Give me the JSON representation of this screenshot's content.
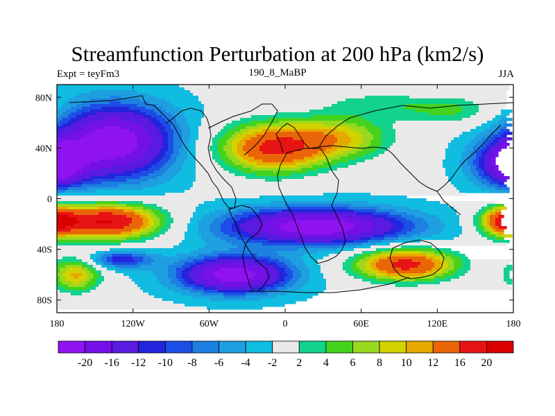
{
  "chart_data": {
    "type": "heatmap",
    "title": "Streamfunction Perturbation at 200 hPa (km2/s)",
    "left_label": "Expt = teyFm3",
    "center_label": "190_8_MaBP",
    "right_label": "JJA",
    "x_range": [
      -180,
      180
    ],
    "y_range": [
      -90,
      90
    ],
    "x_ticks": [
      {
        "value": -180,
        "label": "180"
      },
      {
        "value": -120,
        "label": "120W"
      },
      {
        "value": -60,
        "label": "60W"
      },
      {
        "value": 0,
        "label": "0"
      },
      {
        "value": 60,
        "label": "60E"
      },
      {
        "value": 120,
        "label": "120E"
      },
      {
        "value": 180,
        "label": "180"
      }
    ],
    "y_ticks": [
      {
        "value": 80,
        "label": "80N"
      },
      {
        "value": 40,
        "label": "40N"
      },
      {
        "value": 0,
        "label": "0"
      },
      {
        "value": -40,
        "label": "40S"
      },
      {
        "value": -80,
        "label": "80S"
      }
    ],
    "colorbar": {
      "levels": [
        "-20",
        "-16",
        "-12",
        "-10",
        "-8",
        "-6",
        "-4",
        "-2",
        "2",
        "4",
        "6",
        "8",
        "10",
        "12",
        "16",
        "20"
      ],
      "colors": [
        "#8f12f0",
        "#7410e8",
        "#5a1ae0",
        "#2424dc",
        "#1c4ee6",
        "#1e80e0",
        "#1ea0e0",
        "#10bce0",
        "#e9e9e9",
        "#12d28c",
        "#44d21e",
        "#98d81e",
        "#d2d200",
        "#e6a800",
        "#ea6408",
        "#e61414",
        "#da0000"
      ]
    },
    "field_blobs": [
      {
        "lon": -135,
        "lat": 45,
        "rlon": 45,
        "rlat": 28,
        "amp": -22
      },
      {
        "lon": 178,
        "lat": 28,
        "rlon": 28,
        "rlat": 18,
        "amp": -16
      },
      {
        "lon": -178,
        "lat": 28,
        "rlon": 12,
        "rlat": 14,
        "amp": -12
      },
      {
        "lon": -10,
        "lat": 40,
        "rlon": 42,
        "rlat": 20,
        "amp": 18
      },
      {
        "lon": 45,
        "lat": 48,
        "rlon": 40,
        "rlat": 18,
        "amp": 10
      },
      {
        "lon": 70,
        "lat": 75,
        "rlon": 40,
        "rlat": 10,
        "amp": 4
      },
      {
        "lon": 130,
        "lat": 70,
        "rlon": 40,
        "rlat": 12,
        "amp": 6
      },
      {
        "lon": -140,
        "lat": -18,
        "rlon": 42,
        "rlat": 14,
        "amp": 22
      },
      {
        "lon": 175,
        "lat": -18,
        "rlon": 20,
        "rlat": 12,
        "amp": 18
      },
      {
        "lon": 25,
        "lat": -22,
        "rlon": 70,
        "rlat": 14,
        "amp": -22
      },
      {
        "lon": -130,
        "lat": -48,
        "rlon": 26,
        "rlat": 7,
        "amp": -10
      },
      {
        "lon": -40,
        "lat": -60,
        "rlon": 42,
        "rlat": 14,
        "amp": -22
      },
      {
        "lon": 95,
        "lat": -52,
        "rlon": 40,
        "rlat": 13,
        "amp": 19
      },
      {
        "lon": -165,
        "lat": -60,
        "rlon": 20,
        "rlat": 14,
        "amp": 12
      }
    ],
    "field_background": -1.5
  }
}
